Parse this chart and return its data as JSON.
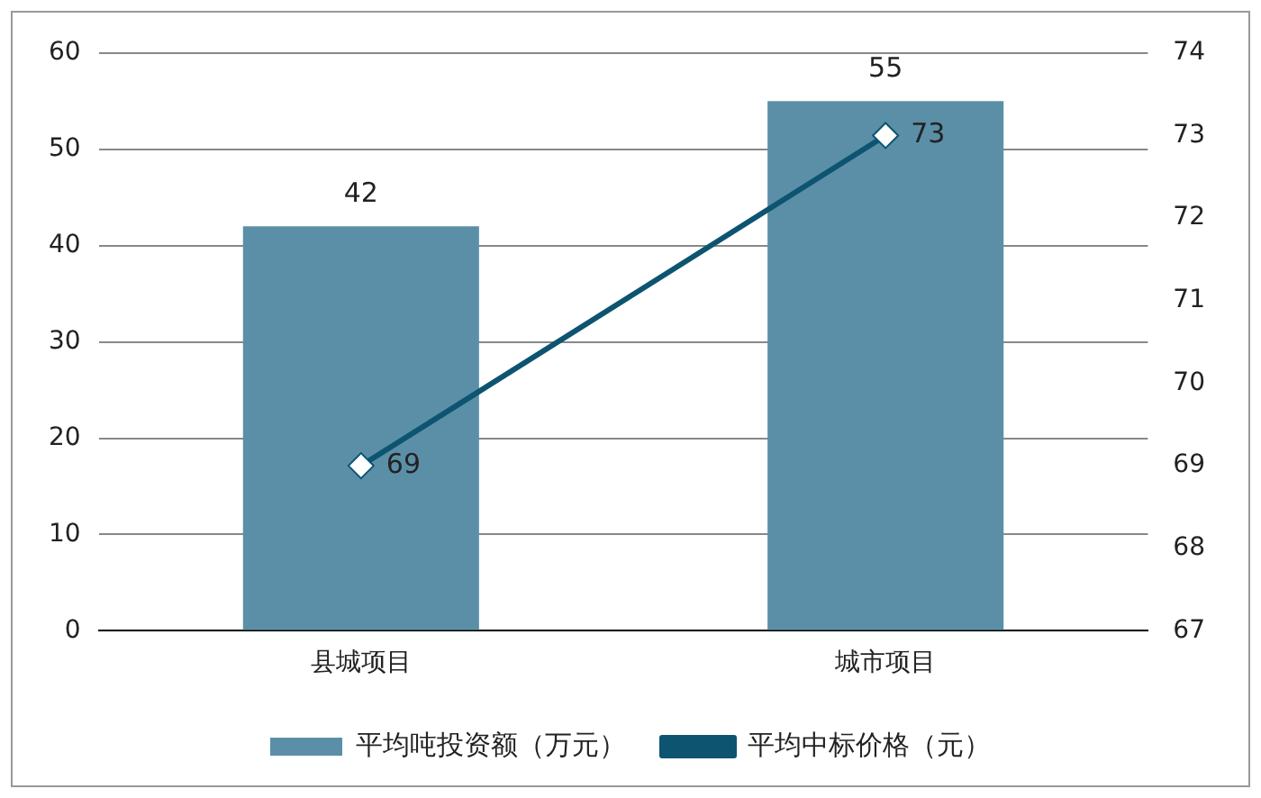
{
  "chart_data": {
    "type": "bar",
    "categories": [
      "县城项目",
      "城市项目"
    ],
    "series": [
      {
        "name": "平均吨投资额（万元）",
        "color": "#5b8fa8",
        "values": [
          42,
          55
        ]
      },
      {
        "name": "平均中标价格（元）",
        "type": "line",
        "axis": "y2",
        "color": "#0d5470",
        "values": [
          69,
          73
        ],
        "marker": "diamond"
      }
    ],
    "ylim": [
      0,
      60
    ],
    "yticks": [
      0,
      10,
      20,
      30,
      40,
      50,
      60
    ],
    "y2lim": [
      67,
      74
    ],
    "y2ticks": [
      67,
      68,
      69,
      70,
      71,
      72,
      73,
      74
    ],
    "grid": "y",
    "legend": "bottom",
    "data_labels": true
  }
}
